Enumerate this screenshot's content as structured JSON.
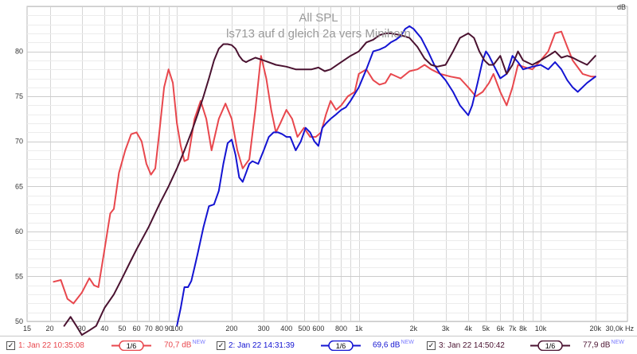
{
  "chart_data": {
    "type": "line",
    "title": "All SPL",
    "subtitle": "ls713 auf d gleich 2a vers Minihorn",
    "ylabel": "dB",
    "xlabel": "",
    "x_scale": "log",
    "xlim": [
      15,
      30000
    ],
    "ylim": [
      50,
      85
    ],
    "grid": true,
    "legend_position": "bottom",
    "x_tick_labels": [
      {
        "v": 15,
        "t": "15"
      },
      {
        "v": 20,
        "t": "20"
      },
      {
        "v": 30,
        "t": "30"
      },
      {
        "v": 40,
        "t": "40"
      },
      {
        "v": 50,
        "t": "50"
      },
      {
        "v": 60,
        "t": "60"
      },
      {
        "v": 70,
        "t": "70"
      },
      {
        "v": 80,
        "t": "80"
      },
      {
        "v": 90,
        "t": "90"
      },
      {
        "v": 100,
        "t": "100"
      },
      {
        "v": 200,
        "t": "200"
      },
      {
        "v": 300,
        "t": "300"
      },
      {
        "v": 400,
        "t": "400"
      },
      {
        "v": 500,
        "t": "500"
      },
      {
        "v": 600,
        "t": "600"
      },
      {
        "v": 800,
        "t": "800"
      },
      {
        "v": 1000,
        "t": "1k"
      },
      {
        "v": 2000,
        "t": "2k"
      },
      {
        "v": 3000,
        "t": "3k"
      },
      {
        "v": 4000,
        "t": "4k"
      },
      {
        "v": 5000,
        "t": "5k"
      },
      {
        "v": 6000,
        "t": "6k"
      },
      {
        "v": 7000,
        "t": "7k"
      },
      {
        "v": 8000,
        "t": "8k"
      },
      {
        "v": 10000,
        "t": "10k"
      },
      {
        "v": 20000,
        "t": "20k"
      },
      {
        "v": 30000,
        "t": "30,0k Hz"
      }
    ],
    "y_tick_labels": [
      {
        "v": 50,
        "t": "50"
      },
      {
        "v": 55,
        "t": "55"
      },
      {
        "v": 60,
        "t": "60"
      },
      {
        "v": 65,
        "t": "65"
      },
      {
        "v": 70,
        "t": "70"
      },
      {
        "v": 75,
        "t": "75"
      },
      {
        "v": 80,
        "t": "80"
      }
    ],
    "series": [
      {
        "name": "1: Jan 22 10:35:08",
        "color": "#e8474d",
        "value_label": "70,7 dB",
        "x": [
          21,
          23,
          25,
          27,
          30,
          33,
          35,
          37,
          40,
          43,
          45,
          48,
          52,
          56,
          60,
          64,
          68,
          72,
          76,
          80,
          85,
          90,
          95,
          100,
          105,
          110,
          115,
          125,
          135,
          145,
          155,
          170,
          185,
          200,
          215,
          230,
          250,
          270,
          290,
          310,
          330,
          350,
          370,
          400,
          430,
          460,
          500,
          540,
          580,
          620,
          660,
          700,
          750,
          800,
          870,
          950,
          1000,
          1100,
          1200,
          1300,
          1400,
          1500,
          1700,
          1900,
          2100,
          2300,
          2500,
          2800,
          3200,
          3600,
          4000,
          4400,
          4800,
          5200,
          5500,
          6000,
          6500,
          7000,
          7500,
          8000,
          9000,
          10000,
          11000,
          12000,
          13000,
          14000,
          15000,
          17000,
          19000,
          20000
        ],
        "y": [
          54.4,
          54.6,
          52.5,
          52.0,
          53.2,
          54.8,
          54.0,
          53.8,
          58.0,
          62.0,
          62.5,
          66.5,
          69.0,
          70.8,
          71.0,
          70.0,
          67.5,
          66.3,
          67.0,
          71.0,
          76.0,
          78.0,
          76.5,
          72.0,
          69.5,
          67.8,
          68.0,
          72.5,
          74.5,
          72.5,
          69.0,
          72.5,
          74.2,
          72.5,
          69.0,
          67.0,
          68.0,
          73.5,
          79.5,
          77.0,
          73.5,
          71.0,
          72.0,
          73.5,
          72.5,
          70.5,
          71.5,
          70.5,
          70.5,
          71.0,
          73.0,
          74.5,
          73.5,
          74.0,
          75.0,
          75.5,
          77.5,
          78.0,
          76.8,
          76.3,
          76.5,
          77.5,
          77.0,
          77.8,
          78.0,
          78.5,
          78.0,
          77.5,
          77.2,
          77.0,
          76.0,
          75.0,
          75.5,
          76.5,
          77.5,
          75.5,
          74.0,
          76.0,
          78.5,
          78.3,
          78.0,
          79.0,
          80.0,
          82.0,
          82.2,
          80.5,
          79.0,
          77.5,
          77.2,
          77.2
        ]
      },
      {
        "name": "2: Jan 22 14:31:39",
        "color": "#1414d2",
        "value_label": "69,6 dB",
        "x": [
          100,
          105,
          110,
          115,
          120,
          125,
          130,
          140,
          150,
          160,
          170,
          180,
          190,
          200,
          210,
          220,
          230,
          240,
          250,
          260,
          280,
          300,
          320,
          340,
          360,
          380,
          400,
          420,
          450,
          480,
          510,
          540,
          570,
          600,
          630,
          660,
          700,
          750,
          800,
          850,
          900,
          1000,
          1100,
          1200,
          1300,
          1400,
          1500,
          1600,
          1700,
          1800,
          1900,
          2000,
          2200,
          2400,
          2600,
          2800,
          3000,
          3300,
          3600,
          4000,
          4200,
          4500,
          4800,
          5000,
          5200,
          5500,
          6000,
          6500,
          7000,
          7500,
          8000,
          9000,
          10000,
          11000,
          12000,
          13000,
          14000,
          15000,
          16000,
          18000,
          20000
        ],
        "y": [
          49.5,
          51.5,
          53.8,
          53.8,
          54.5,
          56.0,
          57.5,
          60.5,
          62.8,
          63.0,
          64.5,
          67.5,
          69.8,
          70.2,
          68.5,
          66.0,
          65.5,
          66.5,
          67.5,
          67.8,
          67.5,
          69.0,
          70.5,
          71.0,
          71.0,
          70.8,
          70.5,
          70.5,
          69.0,
          70.0,
          71.5,
          71.0,
          70.0,
          69.5,
          71.5,
          72.0,
          72.5,
          73.0,
          73.5,
          73.8,
          74.5,
          76.0,
          78.0,
          80.0,
          80.2,
          80.5,
          81.0,
          81.3,
          81.7,
          82.5,
          82.8,
          82.5,
          81.5,
          80.0,
          78.5,
          77.5,
          76.8,
          75.5,
          74.0,
          72.9,
          74.0,
          76.5,
          79.0,
          80.0,
          79.5,
          78.5,
          77.0,
          77.5,
          79.5,
          78.8,
          78.0,
          78.3,
          78.5,
          78.0,
          78.8,
          78.0,
          76.8,
          76.0,
          75.5,
          76.5,
          77.2
        ]
      },
      {
        "name": "3: Jan 22 14:50:42",
        "color": "#4a1230",
        "value_label": "77,9 dB",
        "x": [
          24,
          26,
          28,
          30,
          33,
          36,
          40,
          45,
          50,
          55,
          60,
          70,
          80,
          90,
          100,
          110,
          120,
          130,
          140,
          150,
          160,
          170,
          180,
          190,
          200,
          210,
          220,
          230,
          240,
          250,
          270,
          300,
          350,
          400,
          450,
          500,
          550,
          600,
          650,
          700,
          800,
          900,
          1000,
          1100,
          1200,
          1300,
          1400,
          1500,
          1700,
          1900,
          2100,
          2300,
          2500,
          2700,
          3000,
          3300,
          3600,
          4000,
          4300,
          4600,
          4900,
          5200,
          5500,
          6000,
          6500,
          7000,
          7500,
          8000,
          9000,
          10000,
          11000,
          12000,
          13000,
          14000,
          15000,
          16000,
          18000,
          20000
        ],
        "y": [
          49.5,
          50.5,
          49.5,
          48.5,
          49.0,
          49.5,
          51.5,
          53.0,
          54.8,
          56.5,
          58.0,
          60.5,
          63.0,
          65.0,
          67.0,
          69.0,
          71.0,
          73.0,
          75.0,
          77.0,
          79.0,
          80.3,
          80.8,
          80.8,
          80.7,
          80.3,
          79.5,
          79.0,
          78.8,
          79.0,
          79.3,
          79.0,
          78.5,
          78.3,
          78.0,
          78.0,
          78.0,
          78.2,
          77.8,
          78.0,
          78.8,
          79.5,
          80.0,
          81.0,
          81.3,
          81.8,
          82.0,
          82.0,
          81.8,
          81.5,
          80.5,
          79.2,
          78.5,
          78.3,
          78.5,
          80.0,
          81.5,
          82.0,
          81.5,
          80.0,
          79.0,
          78.5,
          78.5,
          79.5,
          77.5,
          78.5,
          80.0,
          79.0,
          78.5,
          79.0,
          79.5,
          80.0,
          79.3,
          79.5,
          79.3,
          79.0,
          78.5,
          79.5
        ]
      }
    ]
  },
  "legend": {
    "smoothing_label": "1/6",
    "new_badge": "NEW"
  }
}
